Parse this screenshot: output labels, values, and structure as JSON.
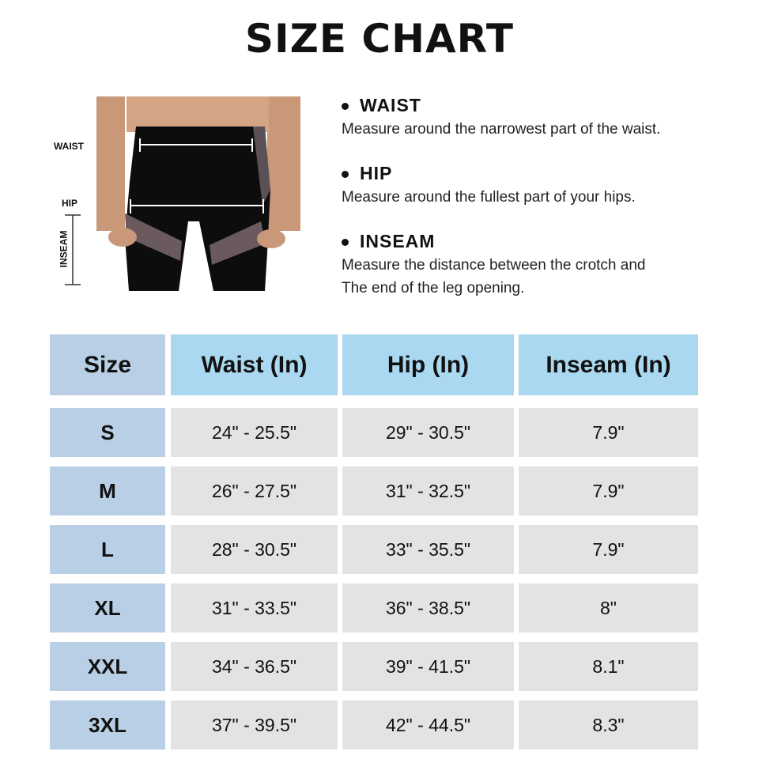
{
  "title": "SIZE CHART",
  "figure": {
    "labels": {
      "waist": "WAIST",
      "hip": "HIP",
      "inseam": "INSEAM"
    }
  },
  "measurements": [
    {
      "heading": "WAIST",
      "text": [
        "Measure around the narrowest part of the waist."
      ]
    },
    {
      "heading": "HIP",
      "text": [
        "Measure around the fullest part of your hips."
      ]
    },
    {
      "heading": "INSEAM",
      "text": [
        "Measure the distance between the crotch and",
        "The end of the leg opening."
      ]
    }
  ],
  "table": {
    "headers": [
      "Size",
      "Waist (In)",
      "Hip (In)",
      "Inseam (In)"
    ],
    "rows": [
      [
        "S",
        "24\" - 25.5\"",
        "29\" - 30.5\"",
        "7.9\""
      ],
      [
        "M",
        "26\" - 27.5\"",
        "31\" - 32.5\"",
        "7.9\""
      ],
      [
        "L",
        "28\" - 30.5\"",
        "33\" - 35.5\"",
        "7.9\""
      ],
      [
        "XL",
        "31\" - 33.5\"",
        "36\" - 38.5\"",
        "8\""
      ],
      [
        "XXL",
        "34\" - 36.5\"",
        "39\" - 41.5\"",
        "8.1\""
      ],
      [
        "3XL",
        "37\" - 39.5\"",
        "42\" - 44.5\"",
        "8.3\""
      ]
    ]
  },
  "colors": {
    "size_column": "#b8cfe5",
    "header": "#a9d8f0",
    "data_cell": "#e3e3e3"
  }
}
